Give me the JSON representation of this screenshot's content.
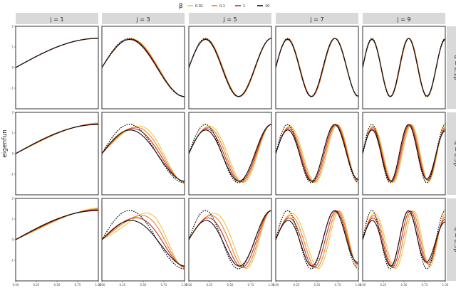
{
  "legend": {
    "title": "β",
    "entries": [
      {
        "label": "0.01",
        "color": "#F5C242"
      },
      {
        "label": "0.1",
        "color": "#F07F2B"
      },
      {
        "label": "1",
        "color": "#C8272A"
      },
      {
        "label": "10",
        "color": "#111111"
      }
    ]
  },
  "chart_data": {
    "type": "line",
    "ylabel": "eigenfun",
    "xlabel": "",
    "xlim": [
      0,
      1
    ],
    "ylim": [
      -2,
      2
    ],
    "x_ticks": [
      "0.00",
      "0.25",
      "0.50",
      "0.75",
      "1.00"
    ],
    "y_ticks": [
      "-1",
      "0",
      "1",
      "2"
    ],
    "columns": [
      {
        "label": "j = 1",
        "j": 1
      },
      {
        "label": "j = 3",
        "j": 3
      },
      {
        "label": "j = 5",
        "j": 5
      },
      {
        "label": "j = 7",
        "j": 7
      },
      {
        "label": "j = 9",
        "j": 9
      }
    ],
    "rows": [
      {
        "label": "α = 0.1β",
        "alpha_factor": 0.1
      },
      {
        "label": "α = 0.5β",
        "alpha_factor": 0.5
      },
      {
        "label": "α = 0.9β",
        "alpha_factor": 0.9
      }
    ],
    "reference_curve": {
      "style": "dotted",
      "color": "#111111",
      "formula": "sqrt(2)*sin(j*pi*x/2)"
    },
    "series": [
      {
        "name": "0.01",
        "color": "#F5C242"
      },
      {
        "name": "0.1",
        "color": "#F07F2B"
      },
      {
        "name": "1",
        "color": "#C8272A"
      },
      {
        "name": "10",
        "color": "#111111"
      }
    ]
  }
}
